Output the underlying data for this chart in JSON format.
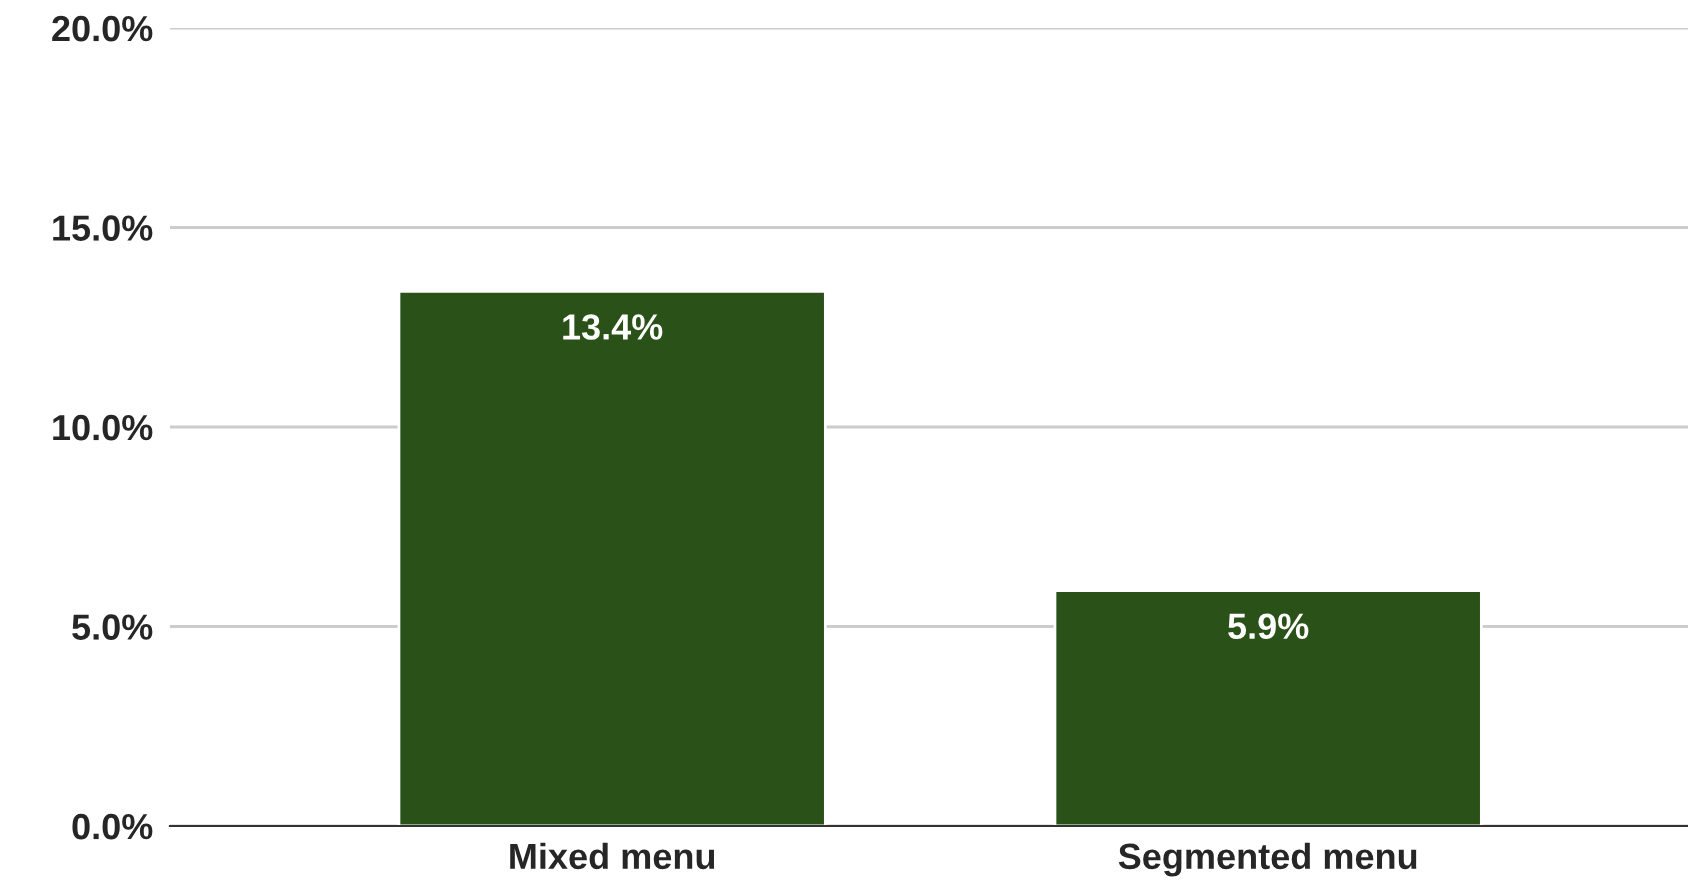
{
  "chart_data": {
    "type": "bar",
    "categories": [
      "Mixed menu",
      "Segmented menu"
    ],
    "values": [
      13.4,
      5.9
    ],
    "value_labels": [
      "13.4%",
      "5.9%"
    ],
    "color": "#2a5118",
    "ylim": [
      0,
      20
    ],
    "yticks": [
      {
        "value": 0,
        "label": "0.0%"
      },
      {
        "value": 5,
        "label": "5.0%"
      },
      {
        "value": 10,
        "label": "10.0%"
      },
      {
        "value": 15,
        "label": "15.0%"
      },
      {
        "value": 20,
        "label": "20.0%"
      }
    ],
    "grid": "y",
    "legend": false
  }
}
